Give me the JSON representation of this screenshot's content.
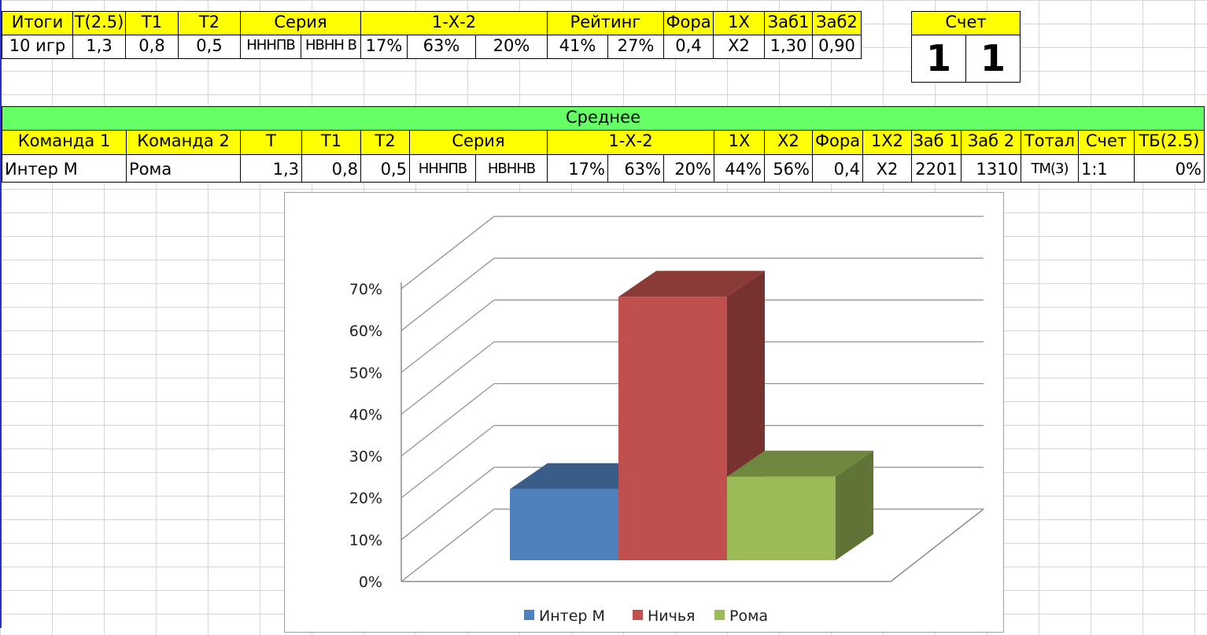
{
  "top_table": {
    "headers": [
      "Итоги",
      "Т(2.5)",
      "Т1",
      "Т2",
      "Серия",
      "1-Х-2",
      "Рейтинг",
      "Фора",
      "1Х",
      "Заб1",
      "Заб2"
    ],
    "values": [
      "10 игр",
      "1,3",
      "0,8",
      "0,5",
      "НННПВ",
      "НВНН В",
      "17%",
      "63%",
      "20%",
      "41%",
      "27%",
      "0,4",
      "Х2",
      "1,30",
      "0,90"
    ]
  },
  "score_box": {
    "label": "Счет",
    "home": "1",
    "away": "1"
  },
  "mid_table": {
    "band": "Среднее",
    "headers": [
      "Команда 1",
      "Команда 2",
      "Т",
      "Т1",
      "Т2",
      "Серия",
      "1-Х-2",
      "1Х",
      "Х2",
      "Фора",
      "1Х2",
      "Заб 1",
      "Заб 2",
      "Тотал",
      "Счет",
      "ТБ(2.5)"
    ],
    "values": [
      "Интер М",
      "Рома",
      "1,3",
      "0,8",
      "0,5",
      "НННПВ",
      "НВННВ",
      "17%",
      "63%",
      "20%",
      "44%",
      "56%",
      "0,4",
      "Х2",
      "2201",
      "1310",
      "ТМ(3)",
      "1:1",
      "0%"
    ]
  },
  "colors": {
    "header_yellow": "#ffff00",
    "band_green": "#66ff66",
    "series_blue": "#4f81bd",
    "series_red": "#c0504d",
    "series_green": "#9bbb59"
  },
  "chart_data": {
    "type": "bar",
    "style": "3d-clustered",
    "categories": [
      ""
    ],
    "series": [
      {
        "name": "Интер М",
        "values": [
          17
        ]
      },
      {
        "name": "Ничья",
        "values": [
          63
        ]
      },
      {
        "name": "Рома",
        "values": [
          20
        ]
      }
    ],
    "ylim": [
      0,
      70
    ],
    "ytick_labels": [
      "0%",
      "10%",
      "20%",
      "30%",
      "40%",
      "50%",
      "60%",
      "70%"
    ],
    "grid": true,
    "legend": "bottom"
  }
}
